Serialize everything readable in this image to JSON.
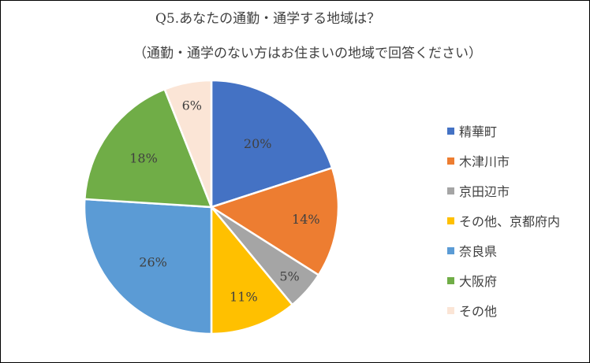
{
  "title": {
    "line1": "Q5.あなたの通勤・通学する地域は？",
    "line2": "（通勤・通学のない方はお住まいの地域で回答ください）"
  },
  "chart_data": {
    "type": "pie",
    "title": "Q5.あなたの通勤・通学する地域は？（通勤・通学のない方はお住まいの地域で回答ください）",
    "legend_position": "right",
    "start_angle": "12 o'clock, clockwise",
    "slices": [
      {
        "label": "精華町",
        "value": 20,
        "value_label": "20%",
        "color": "#4472C4"
      },
      {
        "label": "木津川市",
        "value": 14,
        "value_label": "14%",
        "color": "#ED7D31"
      },
      {
        "label": "京田辺市",
        "value": 5,
        "value_label": "5%",
        "color": "#A5A5A5"
      },
      {
        "label": "その他、京都府内",
        "value": 11,
        "value_label": "11%",
        "color": "#FFC000"
      },
      {
        "label": "奈良県",
        "value": 26,
        "value_label": "26%",
        "color": "#5B9BD5"
      },
      {
        "label": "大阪府",
        "value": 18,
        "value_label": "18%",
        "color": "#70AD47"
      },
      {
        "label": "その他",
        "value": 6,
        "value_label": "6%",
        "color": "#FBE5D6"
      }
    ]
  }
}
